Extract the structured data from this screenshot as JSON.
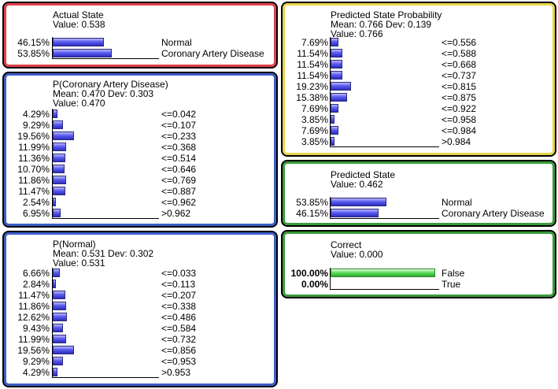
{
  "nodes": {
    "actual_state": {
      "title": "Actual State",
      "value_line": "Value: 0.538",
      "border_color": "#e0404a",
      "rows": [
        {
          "pct": "46.15%",
          "label": "Normal",
          "fraction": 0.4615
        },
        {
          "pct": "53.85%",
          "label": "Coronary Artery Disease",
          "fraction": 0.5385
        }
      ]
    },
    "p_cad": {
      "title": "P(Coronary Artery Disease)",
      "stats_line": "Mean: 0.470 Dev: 0.303",
      "value_line": "Value: 0.470",
      "border_color": "#3a5fc8",
      "rows": [
        {
          "pct": "4.29%",
          "label": "<=0.042",
          "fraction": 0.0429
        },
        {
          "pct": "9.29%",
          "label": "<=0.107",
          "fraction": 0.0929
        },
        {
          "pct": "19.56%",
          "label": "<=0.233",
          "fraction": 0.1956
        },
        {
          "pct": "11.99%",
          "label": "<=0.368",
          "fraction": 0.1199
        },
        {
          "pct": "11.36%",
          "label": "<=0.514",
          "fraction": 0.1136
        },
        {
          "pct": "10.70%",
          "label": "<=0.646",
          "fraction": 0.107
        },
        {
          "pct": "11.86%",
          "label": "<=0.769",
          "fraction": 0.1186
        },
        {
          "pct": "11.47%",
          "label": "<=0.887",
          "fraction": 0.1147
        },
        {
          "pct": "2.54%",
          "label": "<=0.962",
          "fraction": 0.0254
        },
        {
          "pct": "6.95%",
          "label": ">0.962",
          "fraction": 0.0695
        }
      ]
    },
    "p_normal": {
      "title": "P(Normal)",
      "stats_line": "Mean: 0.531 Dev: 0.302",
      "value_line": "Value: 0.531",
      "border_color": "#3a5fc8",
      "rows": [
        {
          "pct": "6.66%",
          "label": "<=0.033",
          "fraction": 0.0666
        },
        {
          "pct": "2.84%",
          "label": "<=0.113",
          "fraction": 0.0284
        },
        {
          "pct": "11.47%",
          "label": "<=0.207",
          "fraction": 0.1147
        },
        {
          "pct": "11.86%",
          "label": "<=0.338",
          "fraction": 0.1186
        },
        {
          "pct": "12.62%",
          "label": "<=0.486",
          "fraction": 0.1262
        },
        {
          "pct": "9.43%",
          "label": "<=0.584",
          "fraction": 0.0943
        },
        {
          "pct": "11.99%",
          "label": "<=0.732",
          "fraction": 0.1199
        },
        {
          "pct": "19.56%",
          "label": "<=0.856",
          "fraction": 0.1956
        },
        {
          "pct": "9.29%",
          "label": "<=0.953",
          "fraction": 0.0929
        },
        {
          "pct": "4.29%",
          "label": ">0.953",
          "fraction": 0.0429
        }
      ]
    },
    "predicted_prob": {
      "title": "Predicted State Probability",
      "stats_line": "Mean: 0.766 Dev: 0.139",
      "value_line": "Value: 0.766",
      "border_color": "#e8d44a",
      "rows": [
        {
          "pct": "7.69%",
          "label": "<=0.556",
          "fraction": 0.0769
        },
        {
          "pct": "11.54%",
          "label": "<=0.588",
          "fraction": 0.1154
        },
        {
          "pct": "11.54%",
          "label": "<=0.668",
          "fraction": 0.1154
        },
        {
          "pct": "11.54%",
          "label": "<=0.737",
          "fraction": 0.1154
        },
        {
          "pct": "19.23%",
          "label": "<=0.815",
          "fraction": 0.1923
        },
        {
          "pct": "15.38%",
          "label": "<=0.875",
          "fraction": 0.1538
        },
        {
          "pct": "7.69%",
          "label": "<=0.922",
          "fraction": 0.0769
        },
        {
          "pct": "3.85%",
          "label": "<=0.958",
          "fraction": 0.0385
        },
        {
          "pct": "7.69%",
          "label": "<=0.984",
          "fraction": 0.0769
        },
        {
          "pct": "3.85%",
          "label": ">0.984",
          "fraction": 0.0385
        }
      ]
    },
    "predicted_state": {
      "title": "Predicted State",
      "value_line": "Value: 0.462",
      "border_color": "#3a9a3a",
      "rows": [
        {
          "pct": "53.85%",
          "label": "Normal",
          "fraction": 0.5385
        },
        {
          "pct": "46.15%",
          "label": "Coronary Artery Disease",
          "fraction": 0.4615
        }
      ]
    },
    "correct": {
      "title": "Correct",
      "value_line": "Value: 0.000",
      "border_color": "#3a9a3a",
      "rows": [
        {
          "pct": "100.00%",
          "label": "False",
          "fraction": 1.0
        },
        {
          "pct": "0.00%",
          "label": "True",
          "fraction": 0.0
        }
      ]
    }
  },
  "colors": {
    "bar_blue": "#4a4ae6",
    "bar_green": "#55dd55",
    "red_frame": "#e0404a",
    "blue_frame": "#3a5fc8",
    "yellow_frame": "#e8d44a",
    "green_frame": "#3a9a3a"
  }
}
